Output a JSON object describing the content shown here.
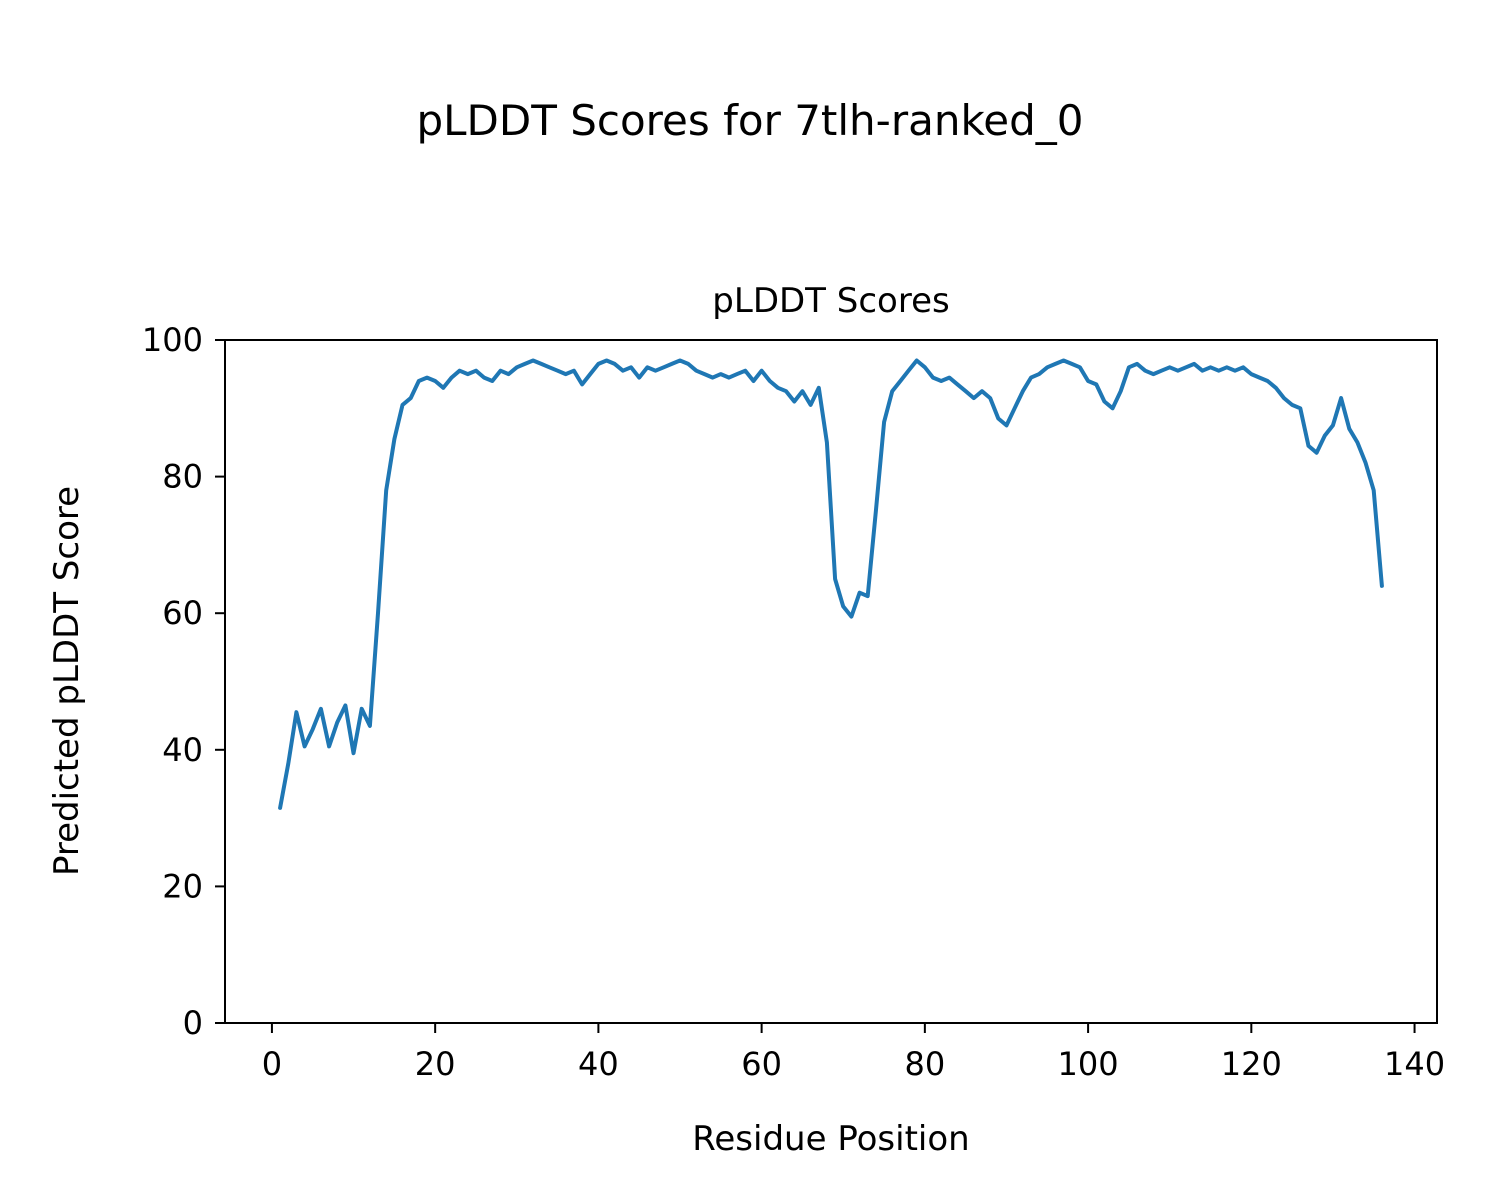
{
  "chart_data": {
    "type": "line",
    "figure_title": "pLDDT Scores for 7tlh-ranked_0",
    "title": "pLDDT Scores",
    "xlabel": "Residue Position",
    "ylabel": "Predicted pLDDT Score",
    "xlim": [
      -5.75,
      142.75
    ],
    "ylim": [
      0,
      100
    ],
    "xticks": [
      0,
      20,
      40,
      60,
      80,
      100,
      120,
      140
    ],
    "yticks": [
      0,
      20,
      40,
      60,
      80,
      100
    ],
    "grid": false,
    "legend": "none",
    "line_color": "#1f77b4",
    "series": [
      {
        "name": "pLDDT",
        "x_start": 1,
        "values": [
          31.5,
          38,
          45.5,
          40.5,
          43,
          46,
          40.5,
          44,
          46.5,
          39.5,
          46,
          43.5,
          60,
          78,
          85.5,
          90.5,
          91.5,
          94,
          94.5,
          94,
          93,
          94.5,
          95.5,
          95,
          95.5,
          94.5,
          94,
          95.5,
          95,
          96,
          96.5,
          97,
          96.5,
          96,
          95.5,
          95,
          95.5,
          93.5,
          95,
          96.5,
          97,
          96.5,
          95.5,
          96,
          94.5,
          96,
          95.5,
          96,
          96.5,
          97,
          96.5,
          95.5,
          95,
          94.5,
          95,
          94.5,
          95,
          95.5,
          94,
          95.5,
          94,
          93,
          92.5,
          91,
          92.5,
          90.5,
          93,
          85,
          65,
          61,
          59.5,
          63,
          62.5,
          75,
          88,
          92.5,
          94,
          95.5,
          97,
          96,
          94.5,
          94,
          94.5,
          93.5,
          92.5,
          91.5,
          92.5,
          91.5,
          88.5,
          87.5,
          90,
          92.5,
          94.5,
          95,
          96,
          96.5,
          97,
          96.5,
          96,
          94,
          93.5,
          91,
          90,
          92.5,
          96,
          96.5,
          95.5,
          95,
          95.5,
          96,
          95.5,
          96,
          96.5,
          95.5,
          96,
          95.5,
          96,
          95.5,
          96,
          95,
          94.5,
          94,
          93,
          91.5,
          90.5,
          90,
          84.5,
          83.5,
          86,
          87.5,
          91.5,
          87,
          85,
          82,
          78,
          64
        ]
      }
    ]
  }
}
